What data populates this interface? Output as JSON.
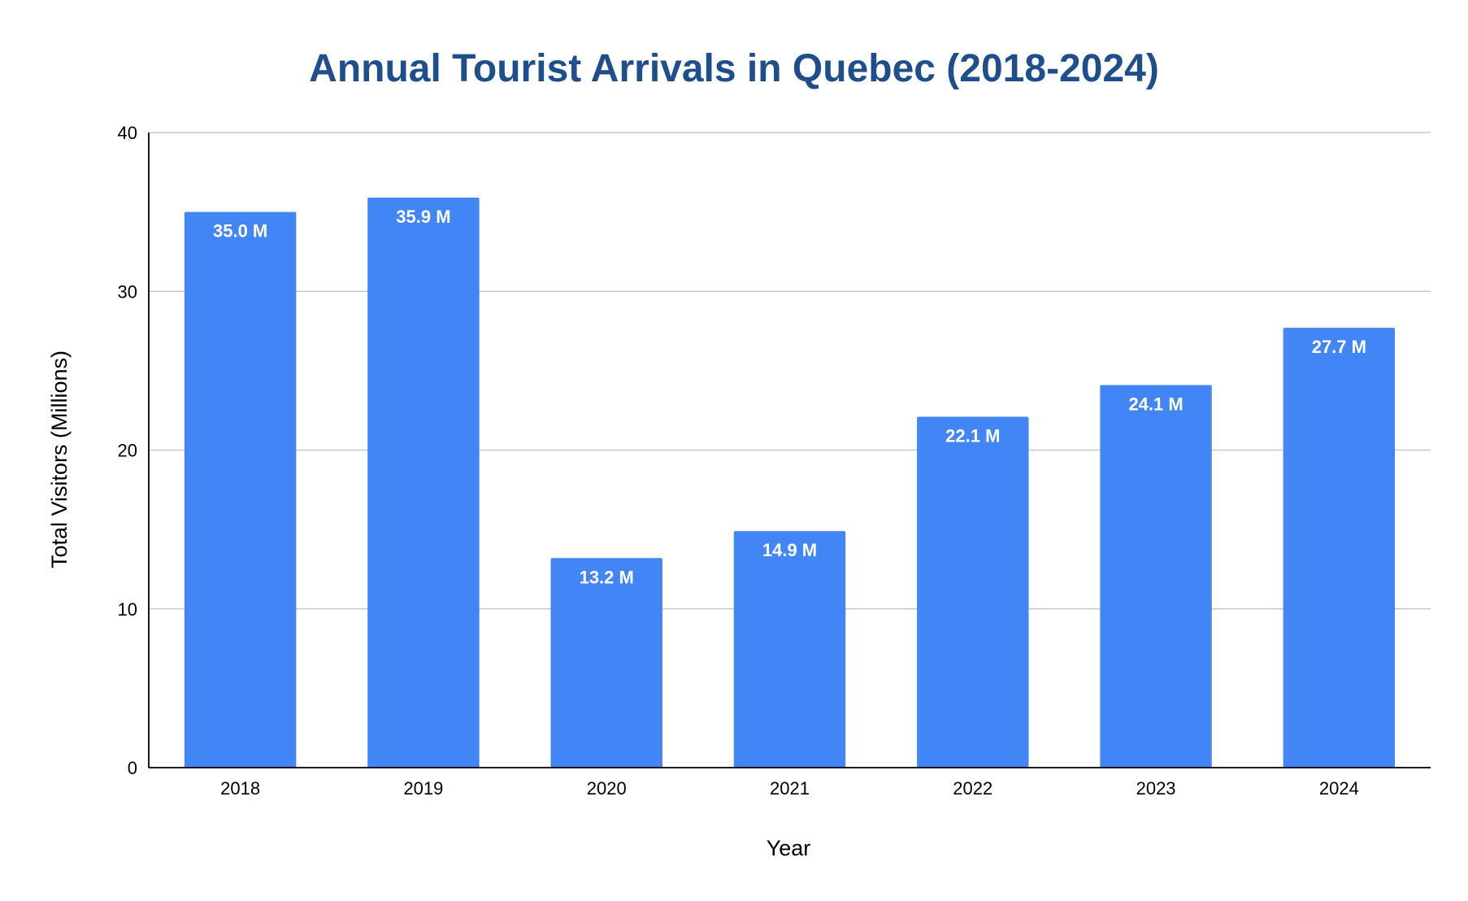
{
  "chart_data": {
    "type": "bar",
    "title": "Annual Tourist Arrivals in Quebec (2018-2024)",
    "xlabel": "Year",
    "ylabel": "Total Visitors (Millions)",
    "categories": [
      "2018",
      "2019",
      "2020",
      "2021",
      "2022",
      "2023",
      "2024"
    ],
    "values": [
      35.0,
      35.9,
      13.2,
      14.9,
      22.1,
      24.1,
      27.7
    ],
    "data_labels": [
      "35.0 M",
      "35.9 M",
      "13.2 M",
      "14.9 M",
      "22.1 M",
      "24.1 M",
      "27.7 M"
    ],
    "ylim": [
      0,
      40
    ],
    "yticks": [
      0,
      10,
      20,
      30,
      40
    ],
    "grid": true,
    "legend": "none",
    "colors": {
      "bar": "#4285f4",
      "title": "#1f4e8c",
      "gridline": "#c8c8c8",
      "axis": "#000000",
      "data_label": "#ffffff"
    }
  }
}
